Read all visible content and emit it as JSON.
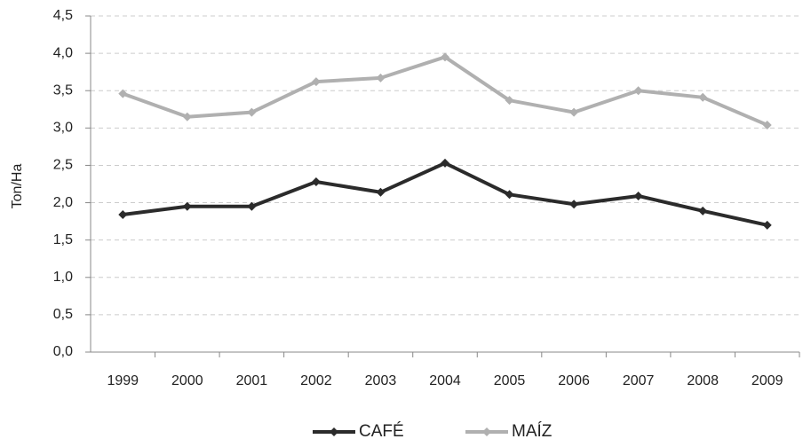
{
  "chart_data": {
    "type": "line",
    "y_label": "Ton/Ha",
    "categories": [
      "1999",
      "2000",
      "2001",
      "2002",
      "2003",
      "2004",
      "2005",
      "2006",
      "2007",
      "2008",
      "2009"
    ],
    "series": [
      {
        "name": "CAFÉ",
        "color": "#2b2b2b",
        "values": [
          1.84,
          1.95,
          1.95,
          2.28,
          2.14,
          2.53,
          2.11,
          1.98,
          2.09,
          1.89,
          1.7
        ]
      },
      {
        "name": "MAÍZ",
        "color": "#b0b0b0",
        "values": [
          3.46,
          3.15,
          3.21,
          3.62,
          3.67,
          3.95,
          3.37,
          3.21,
          3.5,
          3.41,
          3.04
        ]
      }
    ],
    "ylim": [
      0,
      4.5
    ],
    "yticks": [
      {
        "value": 0,
        "label": "0,0"
      },
      {
        "value": 0.5,
        "label": "0,5"
      },
      {
        "value": 1,
        "label": "1,0"
      },
      {
        "value": 1.5,
        "label": "1,5"
      },
      {
        "value": 2,
        "label": "2,0"
      },
      {
        "value": 2.5,
        "label": "2,5"
      },
      {
        "value": 3,
        "label": "3,0"
      },
      {
        "value": 3.5,
        "label": "3,5"
      },
      {
        "value": 4,
        "label": "4,0"
      },
      {
        "value": 4.5,
        "label": "4,5"
      }
    ],
    "grid": true,
    "legend": "bottom"
  }
}
